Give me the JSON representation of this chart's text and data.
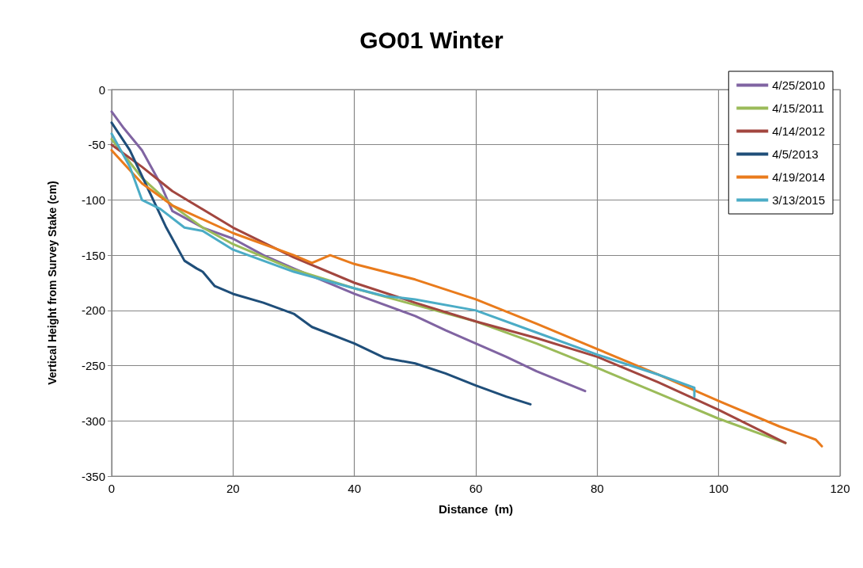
{
  "chart_data": {
    "type": "line",
    "title": "GO01 Winter",
    "xlabel": "Distance  (m)",
    "ylabel": "Vertical Height from Survey Stake (cm)",
    "xlim": [
      0,
      120
    ],
    "xticks": [
      0,
      20,
      40,
      60,
      80,
      100,
      120
    ],
    "ylim": [
      -350,
      0
    ],
    "yticks": [
      -350,
      -300,
      -250,
      -200,
      -150,
      -100,
      -50,
      0
    ],
    "grid": true,
    "legend": "top right",
    "marker": "none",
    "line_style": "solid",
    "series": [
      {
        "name": "4/25/2010",
        "color": "#8064a2",
        "x": [
          0,
          2,
          5,
          8,
          10,
          15,
          20,
          25,
          30,
          40,
          50,
          55,
          60,
          65,
          70,
          78
        ],
        "values": [
          -20,
          -35,
          -55,
          -85,
          -110,
          -125,
          -135,
          -150,
          -162,
          -185,
          -205,
          -218,
          -230,
          -242,
          -255,
          -273
        ]
      },
      {
        "name": "4/15/2011",
        "color": "#9bbb59",
        "x": [
          0,
          5,
          10,
          15,
          20,
          30,
          40,
          50,
          60,
          70,
          80,
          90,
          100,
          111
        ],
        "values": [
          -45,
          -80,
          -105,
          -125,
          -140,
          -163,
          -180,
          -195,
          -210,
          -230,
          -252,
          -275,
          -298,
          -320
        ]
      },
      {
        "name": "4/14/2012",
        "color": "#a2463f",
        "x": [
          0,
          5,
          10,
          20,
          30,
          40,
          50,
          60,
          70,
          80,
          90,
          100,
          111
        ],
        "values": [
          -50,
          -70,
          -92,
          -125,
          -152,
          -175,
          -193,
          -210,
          -225,
          -242,
          -265,
          -290,
          -320
        ]
      },
      {
        "name": "4/5/2013",
        "color": "#1f4e79",
        "x": [
          0,
          3,
          6,
          9,
          12,
          14,
          15,
          17,
          20,
          25,
          30,
          33,
          40,
          45,
          50,
          55,
          60,
          65,
          69
        ],
        "values": [
          -30,
          -55,
          -90,
          -125,
          -155,
          -162,
          -165,
          -178,
          -185,
          -193,
          -203,
          -215,
          -230,
          -243,
          -248,
          -257,
          -268,
          -278,
          -285
        ]
      },
      {
        "name": "4/19/2014",
        "color": "#e97b1c",
        "x": [
          0,
          5,
          10,
          20,
          30,
          33,
          36,
          40,
          50,
          60,
          70,
          80,
          90,
          100,
          110,
          116,
          117
        ],
        "values": [
          -55,
          -85,
          -105,
          -130,
          -150,
          -157,
          -150,
          -158,
          -172,
          -190,
          -212,
          -235,
          -258,
          -282,
          -305,
          -317,
          -323
        ]
      },
      {
        "name": "3/13/2015",
        "color": "#4bacc6",
        "x": [
          0,
          3,
          5,
          8,
          12,
          15,
          20,
          30,
          40,
          45,
          50,
          60,
          70,
          80,
          90,
          96,
          96
        ],
        "values": [
          -40,
          -70,
          -100,
          -108,
          -125,
          -128,
          -145,
          -165,
          -180,
          -187,
          -190,
          -200,
          -220,
          -240,
          -258,
          -270,
          -278
        ]
      }
    ]
  }
}
